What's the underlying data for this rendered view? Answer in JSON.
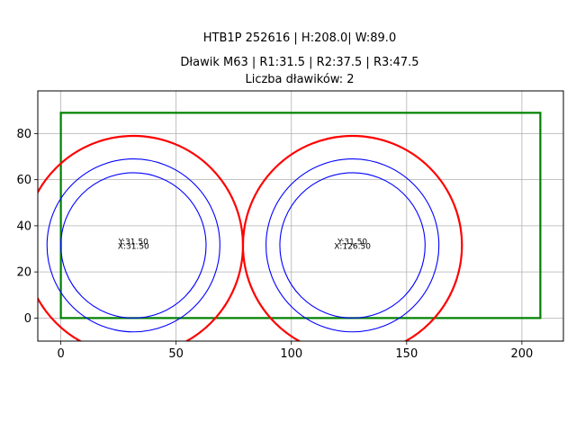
{
  "chart_data": {
    "type": "scatter",
    "title_lines": [
      "HTB1P 252616 | H:208.0| W:89.0",
      "Dławik M63 | R1:31.5 | R2:37.5 | R3:47.5",
      "Liczba dławików: 2"
    ],
    "xlabel": "",
    "ylabel": "",
    "xlim": [
      -10,
      218
    ],
    "ylim": [
      -10,
      98.5
    ],
    "xticks": [
      0,
      50,
      100,
      150,
      200
    ],
    "yticks": [
      0,
      20,
      40,
      60,
      80
    ],
    "grid": true,
    "rectangle": {
      "x": 0,
      "y": 0,
      "width": 208.0,
      "height": 89.0,
      "color": "#008000"
    },
    "circles": [
      {
        "cx": 31.5,
        "cy": 31.5,
        "r": 31.5,
        "color": "#0000ff"
      },
      {
        "cx": 31.5,
        "cy": 31.5,
        "r": 37.5,
        "color": "#0000ff"
      },
      {
        "cx": 31.5,
        "cy": 31.5,
        "r": 47.5,
        "color": "#ff0000"
      },
      {
        "cx": 126.5,
        "cy": 31.5,
        "r": 31.5,
        "color": "#0000ff"
      },
      {
        "cx": 126.5,
        "cy": 31.5,
        "r": 37.5,
        "color": "#0000ff"
      },
      {
        "cx": 126.5,
        "cy": 31.5,
        "r": 47.5,
        "color": "#ff0000"
      }
    ],
    "annotations": [
      {
        "x": 31.5,
        "y": 31.5,
        "lines": [
          "Y:31.50",
          "X:31.50"
        ]
      },
      {
        "x": 126.5,
        "y": 31.5,
        "lines": [
          "Y:31.50",
          "X:126.50"
        ]
      }
    ]
  }
}
